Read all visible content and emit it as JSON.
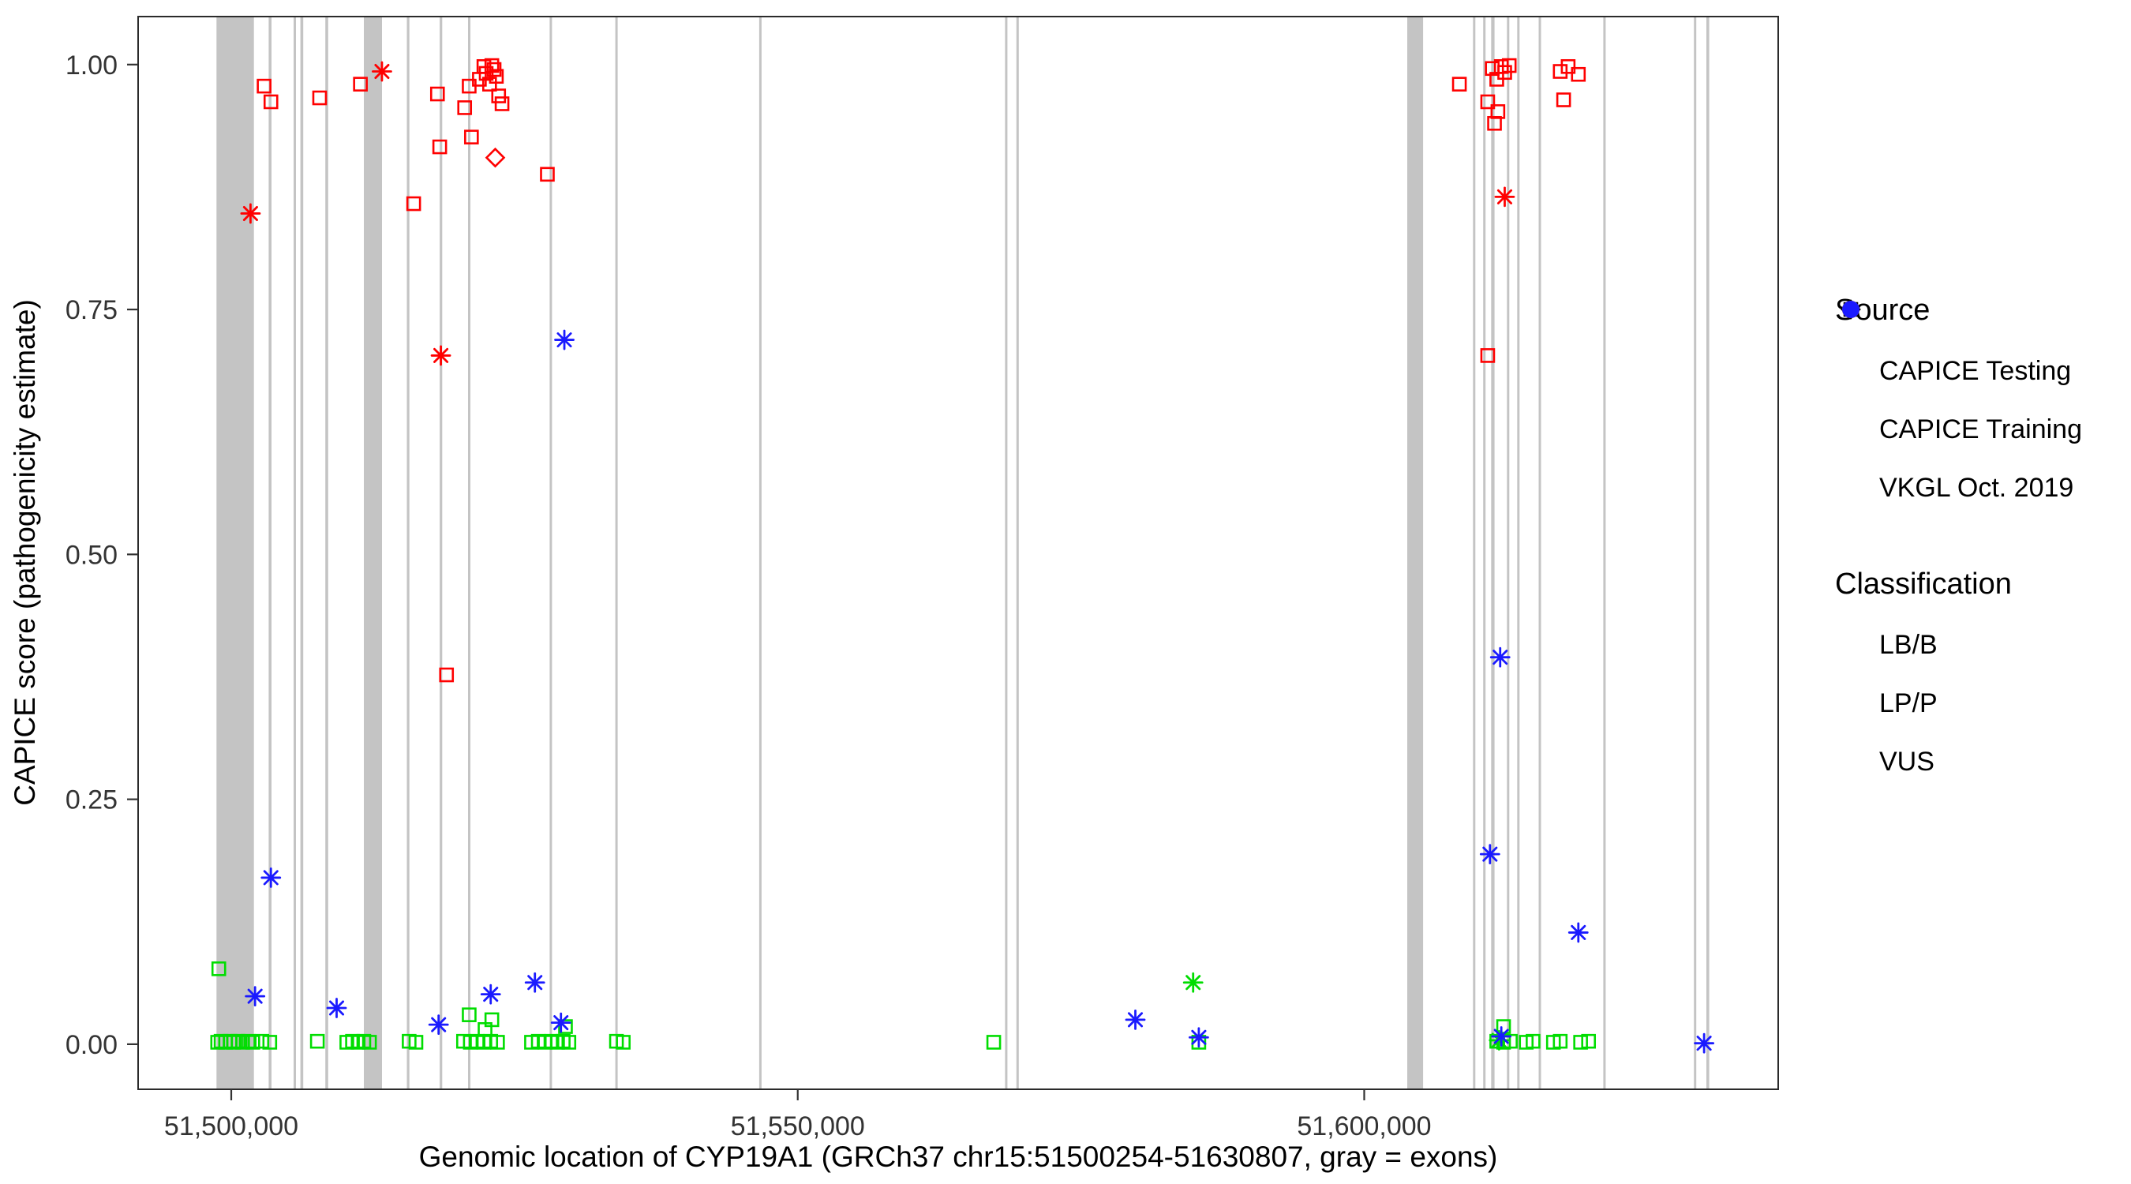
{
  "chart_data": {
    "type": "scatter",
    "title": "",
    "xlabel": "Genomic location of CYP19A1 (GRCh37 chr15:51500254-51630807, gray = exons)",
    "ylabel": "CAPICE score (pathogenicity estimate)",
    "x_domain": [
      51491779,
      51636540
    ],
    "y_domain": [
      -0.046,
      1.049
    ],
    "x_ticks": [
      {
        "value": 51500000,
        "label": "51,500,000"
      },
      {
        "value": 51550000,
        "label": "51,550,000"
      },
      {
        "value": 51600000,
        "label": "51,600,000"
      }
    ],
    "y_ticks": [
      {
        "value": 0.0,
        "label": "0.00"
      },
      {
        "value": 0.25,
        "label": "0.25"
      },
      {
        "value": 0.5,
        "label": "0.50"
      },
      {
        "value": 0.75,
        "label": "0.75"
      },
      {
        "value": 1.0,
        "label": "1.00"
      }
    ],
    "grid": false,
    "legend_position": "right",
    "exon_color": "#C4C4C4",
    "exons": [
      {
        "start": 51498700,
        "end": 51502000
      },
      {
        "start": 51503300,
        "end": 51503550
      },
      {
        "start": 51505500,
        "end": 51505700
      },
      {
        "start": 51506100,
        "end": 51506350
      },
      {
        "start": 51508300,
        "end": 51508550
      },
      {
        "start": 51511700,
        "end": 51513300
      },
      {
        "start": 51515500,
        "end": 51515720
      },
      {
        "start": 51518400,
        "end": 51518620
      },
      {
        "start": 51520900,
        "end": 51521100
      },
      {
        "start": 51528100,
        "end": 51528300
      },
      {
        "start": 51533900,
        "end": 51534100
      },
      {
        "start": 51546600,
        "end": 51546800
      },
      {
        "start": 51568300,
        "end": 51568500
      },
      {
        "start": 51569300,
        "end": 51569500
      },
      {
        "start": 51603800,
        "end": 51605200
      },
      {
        "start": 51609600,
        "end": 51609800
      },
      {
        "start": 51610500,
        "end": 51610700
      },
      {
        "start": 51611200,
        "end": 51611500
      },
      {
        "start": 51612600,
        "end": 51612800
      },
      {
        "start": 51613500,
        "end": 51613700
      },
      {
        "start": 51615400,
        "end": 51615600
      },
      {
        "start": 51621100,
        "end": 51621300
      },
      {
        "start": 51629100,
        "end": 51629300
      },
      {
        "start": 51630200,
        "end": 51630450
      }
    ],
    "classification_colors": {
      "LB/B": "#00DD00",
      "LP/P": "#FF0000",
      "VUS": "#1A1AFF"
    },
    "source_shapes": {
      "CAPICE Testing": "diamond",
      "CAPICE Training": "square",
      "VKGL Oct. 2019": "asterisk"
    },
    "series": [
      {
        "name": "LB/B - CAPICE Training",
        "class": "LB/B",
        "source": "CAPICE Training",
        "points": [
          [
            51498900,
            0.077
          ],
          [
            51498800,
            0.002
          ],
          [
            51499100,
            0.003
          ],
          [
            51499500,
            0.002
          ],
          [
            51499900,
            0.003
          ],
          [
            51500200,
            0.002
          ],
          [
            51500600,
            0.003
          ],
          [
            51501000,
            0.002
          ],
          [
            51501500,
            0.003
          ],
          [
            51501900,
            0.002
          ],
          [
            51502700,
            0.003
          ],
          [
            51503400,
            0.002
          ],
          [
            51507600,
            0.003
          ],
          [
            51510200,
            0.002
          ],
          [
            51510700,
            0.003
          ],
          [
            51511200,
            0.002
          ],
          [
            51511700,
            0.003
          ],
          [
            51512200,
            0.002
          ],
          [
            51515700,
            0.003
          ],
          [
            51516300,
            0.002
          ],
          [
            51520500,
            0.003
          ],
          [
            51521100,
            0.002
          ],
          [
            51521700,
            0.003
          ],
          [
            51522300,
            0.002
          ],
          [
            51522900,
            0.003
          ],
          [
            51523500,
            0.002
          ],
          [
            51521000,
            0.03
          ],
          [
            51522400,
            0.015
          ],
          [
            51523000,
            0.025
          ],
          [
            51526500,
            0.002
          ],
          [
            51527100,
            0.003
          ],
          [
            51527700,
            0.002
          ],
          [
            51528300,
            0.003
          ],
          [
            51528800,
            0.002
          ],
          [
            51529300,
            0.003
          ],
          [
            51529800,
            0.002
          ],
          [
            51529500,
            0.018
          ],
          [
            51534000,
            0.003
          ],
          [
            51534600,
            0.002
          ],
          [
            51567300,
            0.002
          ],
          [
            51585400,
            0.002
          ],
          [
            51611700,
            0.003
          ],
          [
            51612300,
            0.002
          ],
          [
            51612900,
            0.003
          ],
          [
            51612300,
            0.018
          ],
          [
            51614300,
            0.002
          ],
          [
            51614900,
            0.003
          ],
          [
            51616700,
            0.002
          ],
          [
            51617300,
            0.003
          ],
          [
            51619100,
            0.002
          ],
          [
            51619800,
            0.003
          ]
        ]
      },
      {
        "name": "LP/P - CAPICE Training",
        "class": "LP/P",
        "source": "CAPICE Training",
        "points": [
          [
            51502900,
            0.978
          ],
          [
            51503500,
            0.962
          ],
          [
            51507800,
            0.966
          ],
          [
            51511400,
            0.98
          ],
          [
            51516100,
            0.858
          ],
          [
            51518200,
            0.97
          ],
          [
            51518400,
            0.916
          ],
          [
            51519000,
            0.377
          ],
          [
            51520600,
            0.956
          ],
          [
            51521000,
            0.978
          ],
          [
            51521200,
            0.926
          ],
          [
            51521900,
            0.985
          ],
          [
            51522300,
            0.998
          ],
          [
            51522500,
            0.991
          ],
          [
            51522800,
            0.98
          ],
          [
            51523000,
            0.999
          ],
          [
            51523200,
            0.995
          ],
          [
            51523400,
            0.988
          ],
          [
            51523600,
            0.968
          ],
          [
            51523900,
            0.96
          ],
          [
            51527900,
            0.888
          ],
          [
            51608400,
            0.98
          ],
          [
            51610900,
            0.962
          ],
          [
            51610900,
            0.703
          ],
          [
            51611300,
            0.996
          ],
          [
            51611500,
            0.94
          ],
          [
            51611700,
            0.985
          ],
          [
            51611800,
            0.952
          ],
          [
            51612100,
            0.998
          ],
          [
            51612400,
            0.992
          ],
          [
            51612800,
            0.999
          ],
          [
            51617300,
            0.993
          ],
          [
            51617600,
            0.964
          ],
          [
            51618000,
            0.998
          ],
          [
            51618900,
            0.99
          ]
        ]
      },
      {
        "name": "LP/P - CAPICE Testing",
        "class": "LP/P",
        "source": "CAPICE Testing",
        "points": [
          [
            51523300,
            0.905
          ]
        ]
      },
      {
        "name": "LP/P - VKGL Oct. 2019",
        "class": "LP/P",
        "source": "VKGL Oct. 2019",
        "points": [
          [
            51501700,
            0.848
          ],
          [
            51513300,
            0.993
          ],
          [
            51518500,
            0.703
          ],
          [
            51612400,
            0.865
          ]
        ]
      },
      {
        "name": "LB/B - VKGL Oct. 2019",
        "class": "LB/B",
        "source": "VKGL Oct. 2019",
        "points": [
          [
            51584900,
            0.063
          ],
          [
            51611900,
            0.004
          ]
        ]
      },
      {
        "name": "VUS - VKGL Oct. 2019",
        "class": "VUS",
        "source": "VKGL Oct. 2019",
        "points": [
          [
            51502100,
            0.049
          ],
          [
            51503500,
            0.17
          ],
          [
            51509300,
            0.037
          ],
          [
            51518300,
            0.02
          ],
          [
            51522900,
            0.051
          ],
          [
            51526800,
            0.063
          ],
          [
            51529100,
            0.022
          ],
          [
            51529400,
            0.719
          ],
          [
            51579800,
            0.025
          ],
          [
            51585400,
            0.007
          ],
          [
            51611100,
            0.194
          ],
          [
            51612000,
            0.395
          ],
          [
            51612100,
            0.008
          ],
          [
            51618900,
            0.114
          ],
          [
            51630000,
            0.001
          ]
        ]
      }
    ]
  },
  "legend": {
    "source_title": "Source",
    "source_items": [
      {
        "label": "CAPICE Testing",
        "shape": "diamond"
      },
      {
        "label": "CAPICE Training",
        "shape": "square"
      },
      {
        "label": "VKGL Oct. 2019",
        "shape": "asterisk"
      }
    ],
    "classification_title": "Classification",
    "classification_items": [
      {
        "label": "LB/B",
        "color": "#00DD00"
      },
      {
        "label": "LP/P",
        "color": "#FF0000"
      },
      {
        "label": "VUS",
        "color": "#1A1AFF"
      }
    ]
  }
}
